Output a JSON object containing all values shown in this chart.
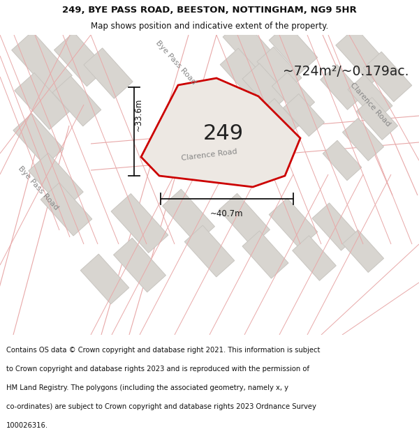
{
  "title_line1": "249, BYE PASS ROAD, BEESTON, NOTTINGHAM, NG9 5HR",
  "title_line2": "Map shows position and indicative extent of the property.",
  "area_text": "~724m²/~0.179ac.",
  "label_249": "249",
  "dim_width": "~40.7m",
  "dim_height": "~33.6m",
  "road_label_bye_pass_upper": "Bye Pass Road",
  "road_label_clarence_bottom": "Clarence Road",
  "road_label_clarence_right": "Clarence Road",
  "road_label_bye_pass_lower": "Bye Pass Road",
  "footer_text": "Contains OS data © Crown copyright and database right 2021. This information is subject to Crown copyright and database rights 2023 and is reproduced with the permission of HM Land Registry. The polygons (including the associated geometry, namely x, y co-ordinates) are subject to Crown copyright and database rights 2023 Ordnance Survey 100026316.",
  "map_bg": "#f5f3f0",
  "road_bg": "#ffffff",
  "building_color": "#d8d5d0",
  "building_edge": "#c8c5c0",
  "road_edge_color": "#e8a8a8",
  "property_fill": "#ede8e3",
  "property_edge": "#cc0000",
  "property_edge_width": 2.0,
  "title_fontsize": 9.5,
  "footer_fontsize": 7.2,
  "dim_color": "#111111",
  "road_label_color": "#888888",
  "label_color": "#222222"
}
